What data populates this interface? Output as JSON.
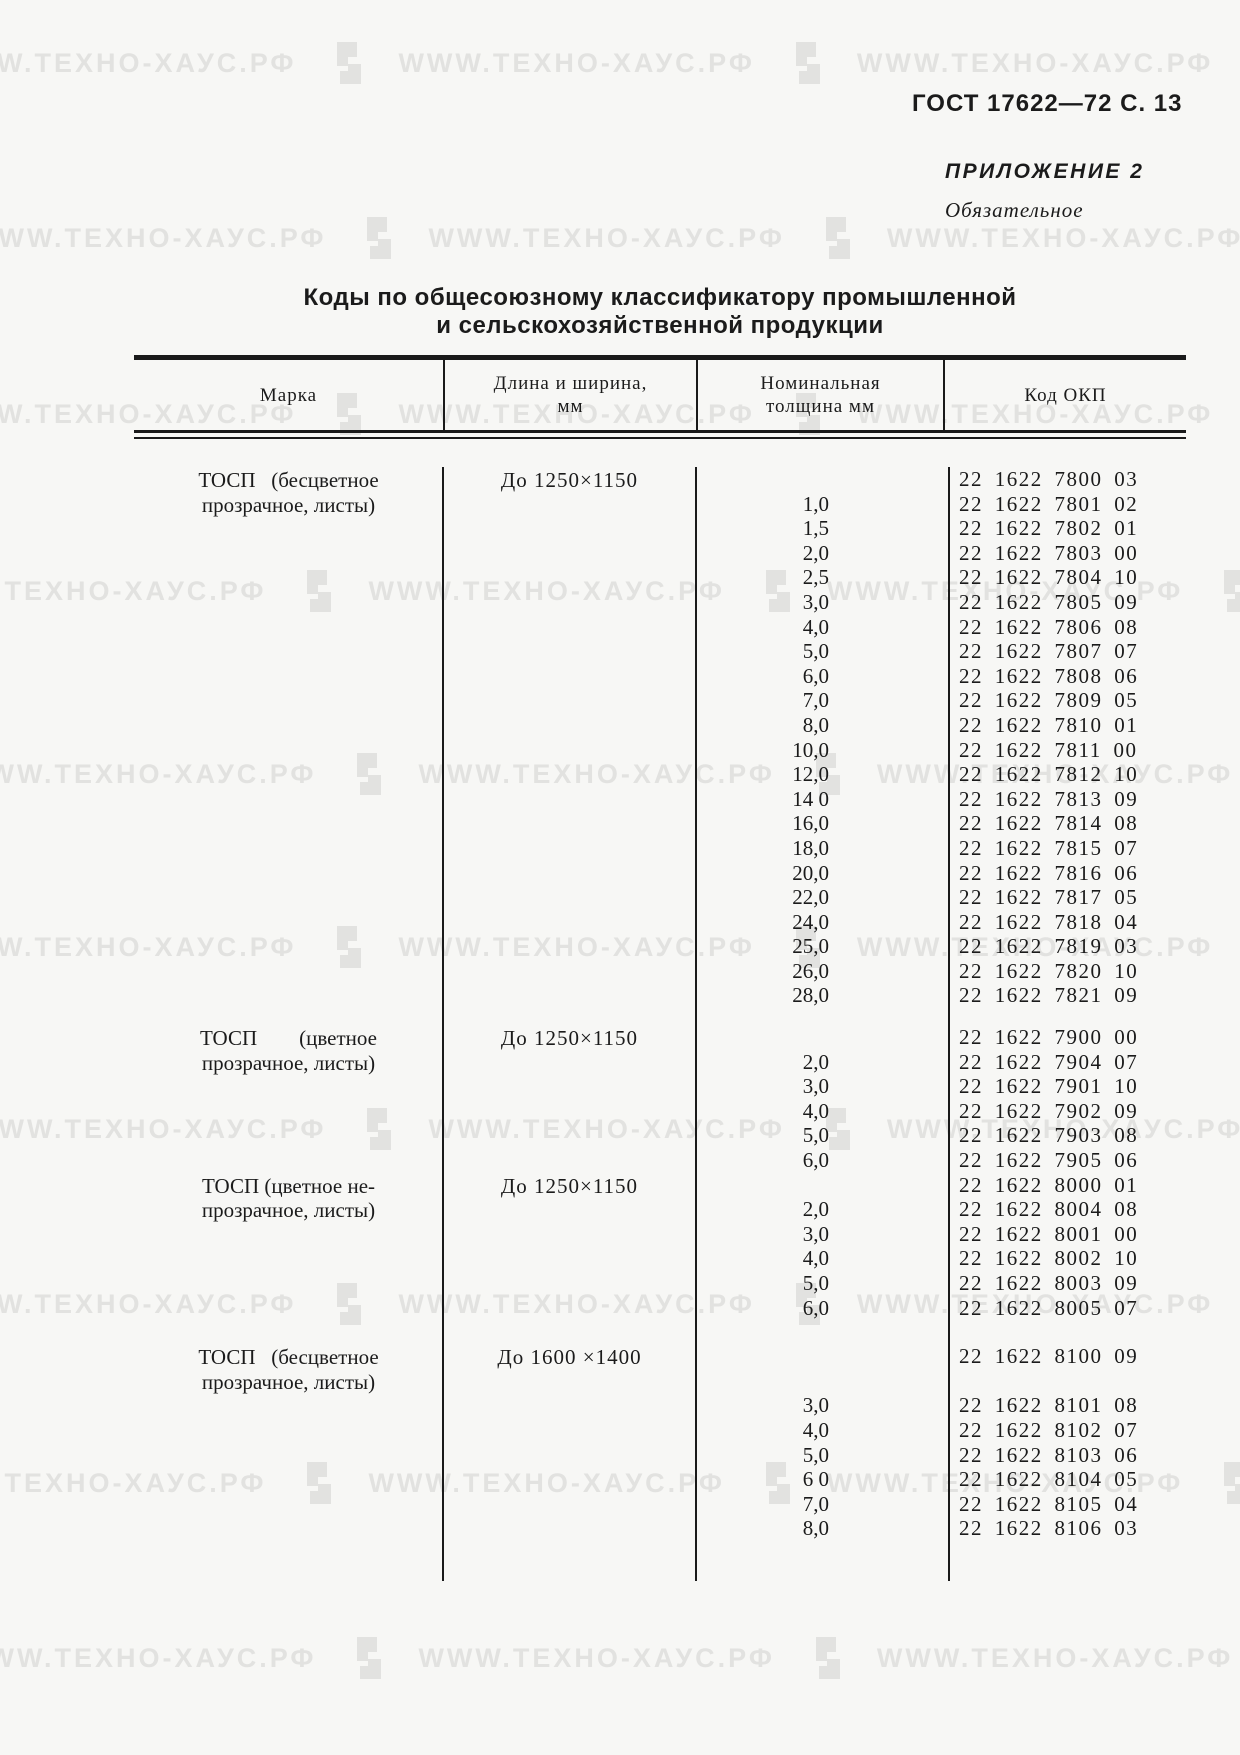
{
  "page": {
    "header_right": "ГОСТ 17622—72 С. 13",
    "appendix": "ПРИЛОЖЕНИЕ 2",
    "appendix_type": "Обязательное"
  },
  "title": {
    "line1": "Коды по общесоюзному классификатору промышленной",
    "line2": "и сельскохозяйственной продукции"
  },
  "watermark": {
    "text": "WWW.ТЕХНО-ХАУС.РФ",
    "icon": "techno-haus-logo-icon",
    "color": "#e2e2e0"
  },
  "table": {
    "col_marka": "Марка",
    "col_size_line1": "Длина и ширина,",
    "col_size_line2": "мм",
    "col_thickness_line1": "Номинальная",
    "col_thickness_line2": "толщина  мм",
    "col_code": "Код ОКП",
    "blocks": [
      {
        "marka_line1": "ТОСП   (бесцветное",
        "marka_line2": "прозрачное, листы)",
        "size": "До 1250×1150",
        "rows": [
          [
            "",
            "22 1622 7800 03"
          ],
          [
            "1,0",
            "22 1622 7801 02"
          ],
          [
            "1,5",
            "22 1622 7802 01"
          ],
          [
            "2,0",
            "22 1622 7803 00"
          ],
          [
            "2,5",
            "22 1622 7804 10"
          ],
          [
            "3,0",
            "22 1622 7805 09"
          ],
          [
            "4,0",
            "22 1622 7806 08"
          ],
          [
            "5,0",
            "22 1622 7807 07"
          ],
          [
            "6,0",
            "22 1622 7808 06"
          ],
          [
            "7,0",
            "22 1622 7809 05"
          ],
          [
            "8,0",
            "22 1622 7810 01"
          ],
          [
            "10,0",
            "22 1622 7811 00"
          ],
          [
            "12,0",
            "22 1622 7812 10"
          ],
          [
            "14 0",
            "22 1622 7813 09"
          ],
          [
            "16,0",
            "22 1622 7814 08"
          ],
          [
            "18,0",
            "22 1622 7815 07"
          ],
          [
            "20,0",
            "22 1622 7816 06"
          ],
          [
            "22,0",
            "22 1622 7817 05"
          ],
          [
            "24,0",
            "22 1622 7818 04"
          ],
          [
            "25,0",
            "22 1622 7819 03"
          ],
          [
            "26,0",
            "22 1622 7820 10"
          ],
          [
            "28,0",
            "22 1622 7821 09"
          ]
        ]
      },
      {
        "marka_line1": "ТОСП        (цветное",
        "marka_line2": "прозрачное, листы)",
        "size": "До 1250×1150",
        "rows": [
          [
            "",
            "22 1622 7900 00"
          ],
          [
            "2,0",
            "22 1622 7904 07"
          ],
          [
            "3,0",
            "22 1622 7901 10"
          ],
          [
            "4,0",
            "22 1622 7902 09"
          ],
          [
            "5,0",
            "22 1622 7903 08"
          ],
          [
            "6,0",
            "22 1622 7905 06"
          ]
        ]
      },
      {
        "marka_line1": "ТОСП (цветное не-",
        "marka_line2": "прозрачное, листы)",
        "size": "До 1250×1150",
        "rows": [
          [
            "",
            "22 1622 8000 01"
          ],
          [
            "2,0",
            "22 1622 8004 08"
          ],
          [
            "3,0",
            "22 1622 8001 00"
          ],
          [
            "4,0",
            "22 1622 8002 10"
          ],
          [
            "5,0",
            "22 1622 8003 09"
          ],
          [
            "6,0",
            "22 1622 8005 07"
          ]
        ]
      },
      {
        "marka_line1": "ТОСП   (бесцветное",
        "marka_line2": "прозрачное, листы)",
        "size": "До 1600 ×1400",
        "rows": [
          [
            "",
            "22 1622 8100 09"
          ],
          [
            "",
            ""
          ],
          [
            "3,0",
            "22 1622 8101 08"
          ],
          [
            "4,0",
            "22 1622 8102 07"
          ],
          [
            "5,0",
            "22 1622 8103 06"
          ],
          [
            "6 0",
            "22 1622 8104 05"
          ],
          [
            "7,0",
            "22 1622 8105 04"
          ],
          [
            "8,0",
            "22 1622 8106 03"
          ]
        ]
      }
    ]
  }
}
